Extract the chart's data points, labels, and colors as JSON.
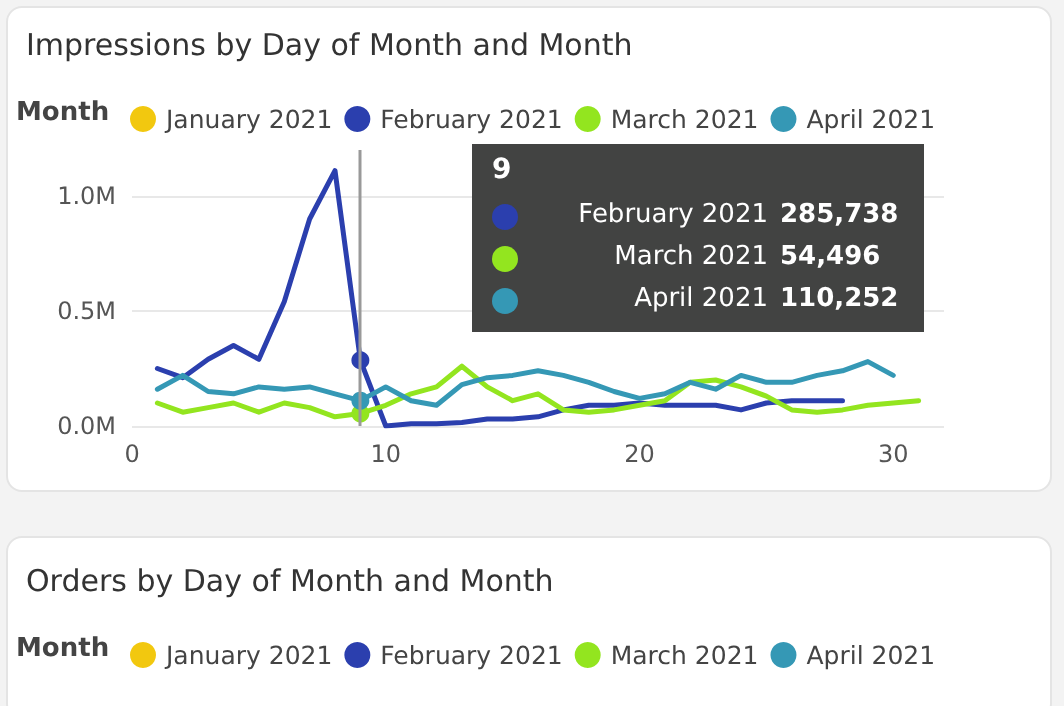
{
  "chart_data": [
    {
      "type": "line",
      "title": "Impressions by Day of Month and Month",
      "legend_title": "Month",
      "legend": "top left",
      "grid": "y",
      "marker": "none",
      "line_style": "solid",
      "x": [
        1,
        2,
        3,
        4,
        5,
        6,
        7,
        8,
        9,
        10,
        11,
        12,
        13,
        14,
        15,
        16,
        17,
        18,
        19,
        20,
        21,
        22,
        23,
        24,
        25,
        26,
        27,
        28,
        29,
        30,
        31
      ],
      "xlim": [
        0,
        32
      ],
      "xticks": [
        0,
        10,
        20,
        30
      ],
      "ylim": [
        0,
        1200000
      ],
      "yticks": [
        {
          "value": 0,
          "label": "0.0M"
        },
        {
          "value": 500000,
          "label": "0.5M"
        },
        {
          "value": 1000000,
          "label": "1.0M"
        }
      ],
      "ref_lines": [
        {
          "axis": "x",
          "value": 9,
          "color": "#999999"
        }
      ],
      "annotations": [
        "9",
        "285,738",
        "54,496",
        "110,252"
      ],
      "series": [
        {
          "name": "January 2021",
          "color": "#f2c80f",
          "values": [
            null,
            null,
            null,
            null,
            null,
            null,
            null,
            null,
            null,
            null,
            null,
            null,
            null,
            null,
            null,
            null,
            null,
            null,
            null,
            null,
            null,
            null,
            null,
            null,
            null,
            null,
            null,
            null,
            null,
            null,
            null
          ]
        },
        {
          "name": "February 2021",
          "color": "#2b3fae",
          "values": [
            250000,
            210000,
            290000,
            350000,
            290000,
            540000,
            900000,
            1110000,
            285738,
            0,
            10000,
            10000,
            15000,
            30000,
            30000,
            40000,
            70000,
            90000,
            90000,
            100000,
            90000,
            90000,
            90000,
            70000,
            100000,
            110000,
            110000,
            110000,
            null,
            null,
            null
          ]
        },
        {
          "name": "March 2021",
          "color": "#93e51f",
          "values": [
            100000,
            60000,
            80000,
            100000,
            60000,
            100000,
            80000,
            40000,
            54496,
            90000,
            140000,
            170000,
            260000,
            170000,
            110000,
            140000,
            70000,
            60000,
            70000,
            90000,
            110000,
            190000,
            200000,
            170000,
            130000,
            70000,
            60000,
            70000,
            90000,
            100000,
            110000
          ]
        },
        {
          "name": "April 2021",
          "color": "#3598b5",
          "values": [
            160000,
            220000,
            150000,
            140000,
            170000,
            160000,
            170000,
            140000,
            110252,
            170000,
            110000,
            90000,
            180000,
            210000,
            220000,
            240000,
            220000,
            190000,
            150000,
            120000,
            140000,
            190000,
            160000,
            220000,
            190000,
            190000,
            220000,
            240000,
            280000,
            220000,
            null
          ]
        }
      ]
    },
    {
      "type": "other",
      "title": "Orders by Day of Month and Month",
      "legend_title": "Month",
      "legend": "top left",
      "series": [
        {
          "name": "January 2021",
          "color": "#f2c80f"
        },
        {
          "name": "February 2021",
          "color": "#2b3fae"
        },
        {
          "name": "March 2021",
          "color": "#93e51f"
        },
        {
          "name": "April 2021",
          "color": "#3598b5"
        }
      ]
    }
  ]
}
